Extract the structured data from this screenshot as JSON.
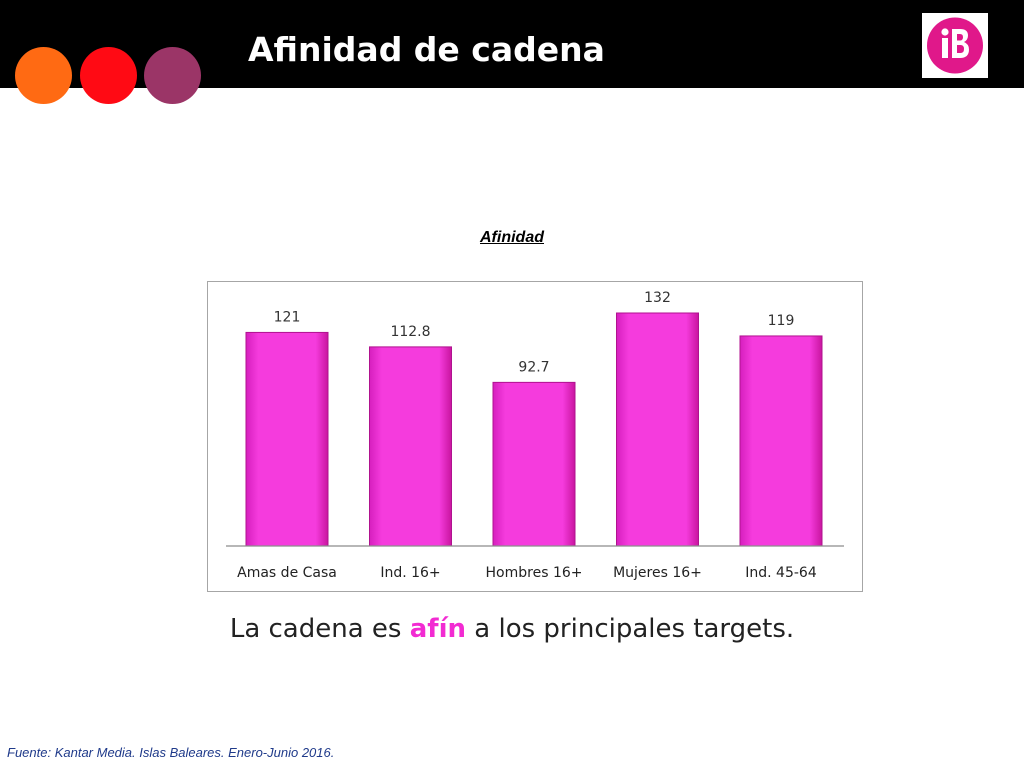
{
  "header": {
    "title": "Afinidad de cadena",
    "colors": {
      "bar": "#000000",
      "dot1": "#FF6A13",
      "dot2": "#FF0A14",
      "dot3": "#9B3567"
    },
    "logo_icon": "ib3-logo-icon"
  },
  "chart_data": {
    "type": "bar",
    "title": "Afinidad",
    "categories": [
      "Amas de Casa",
      "Ind. 16+",
      "Hombres 16+",
      "Mujeres 16+",
      "Ind. 45-64"
    ],
    "values": [
      121,
      112.8,
      92.7,
      132,
      119
    ],
    "data_labels": [
      "121",
      "112.8",
      "92.7",
      "132",
      "119"
    ],
    "xlabel": "",
    "ylabel": "",
    "ylim": [
      0,
      132
    ],
    "grid": false,
    "legend": "none",
    "bar_color": "#F53BDD"
  },
  "caption": {
    "before": "La cadena es ",
    "highlight": "afín",
    "after": " a los principales targets."
  },
  "footer": {
    "source": "Fuente: Kantar Media. Islas Baleares. Enero-Junio 2016."
  }
}
